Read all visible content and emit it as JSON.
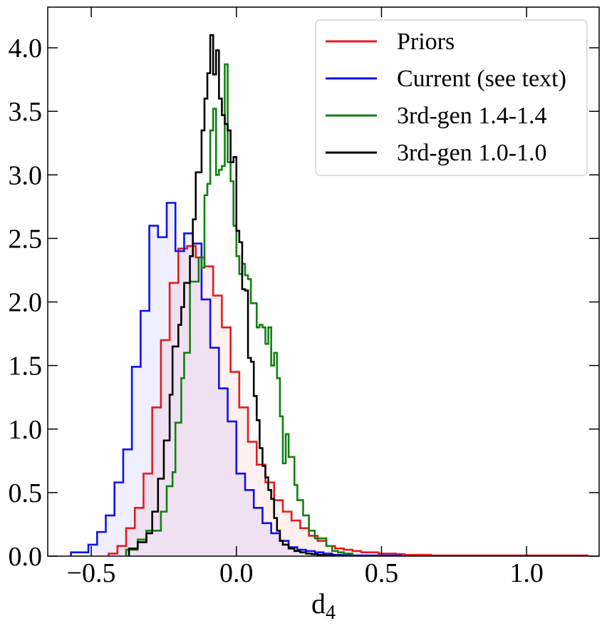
{
  "chart_data": {
    "type": "histogram",
    "xlabel": "d",
    "xlabel_sub": "4",
    "ylabel": "",
    "xlim": [
      -0.65,
      1.25
    ],
    "ylim": [
      0.0,
      4.32
    ],
    "xticks": [
      -0.5,
      0.0,
      0.5,
      1.0
    ],
    "xtick_labels": [
      "−0.5",
      "0.0",
      "0.5",
      "1.0"
    ],
    "yticks": [
      0.0,
      0.5,
      1.0,
      1.5,
      2.0,
      2.5,
      3.0,
      3.5,
      4.0
    ],
    "ytick_labels": [
      "0.0",
      "0.5",
      "1.0",
      "1.5",
      "2.0",
      "2.5",
      "3.0",
      "3.5",
      "4.0"
    ],
    "legend_position": "upper right",
    "series": [
      {
        "name": "Priors",
        "color": "#e41a1c",
        "fill": "rgba(255,120,120,0.12)",
        "edges": [
          -0.44,
          -0.41,
          -0.38,
          -0.35,
          -0.32,
          -0.29,
          -0.26,
          -0.23,
          -0.2,
          -0.17,
          -0.14,
          -0.11,
          -0.08,
          -0.05,
          -0.02,
          0.01,
          0.04,
          0.07,
          0.1,
          0.13,
          0.16,
          0.19,
          0.22,
          0.25,
          0.28,
          0.31,
          0.34,
          0.37,
          0.4,
          0.43,
          0.46,
          0.49,
          0.52,
          0.55,
          0.58,
          0.61,
          0.64,
          0.67,
          0.7,
          0.73,
          0.76,
          0.79,
          0.82,
          0.85,
          0.88,
          0.91,
          1.21
        ],
        "values": [
          0.02,
          0.08,
          0.22,
          0.38,
          0.65,
          1.17,
          1.7,
          2.15,
          2.42,
          2.44,
          2.35,
          2.28,
          2.05,
          1.8,
          1.45,
          1.17,
          0.9,
          0.72,
          0.58,
          0.44,
          0.35,
          0.28,
          0.22,
          0.16,
          0.12,
          0.08,
          0.06,
          0.05,
          0.04,
          0.03,
          0.03,
          0.02,
          0.02,
          0.015,
          0.01,
          0.01,
          0.01,
          0.005,
          0.005,
          0.005,
          0.005,
          0.005,
          0.005,
          0.005,
          0.005,
          0.005
        ]
      },
      {
        "name": "Current (see text)",
        "color": "#1010ee",
        "fill": "rgba(120,120,255,0.12)",
        "edges": [
          -0.57,
          -0.54,
          -0.51,
          -0.48,
          -0.45,
          -0.42,
          -0.39,
          -0.36,
          -0.33,
          -0.3,
          -0.27,
          -0.24,
          -0.21,
          -0.18,
          -0.15,
          -0.12,
          -0.09,
          -0.06,
          -0.03,
          0.0,
          0.03,
          0.06,
          0.09,
          0.12,
          0.15,
          0.18,
          0.21,
          0.24,
          0.27,
          0.3,
          0.33,
          0.36,
          0.39,
          0.42,
          0.45,
          0.48,
          0.51,
          0.54,
          0.57
        ],
        "values": [
          0.03,
          0.03,
          0.09,
          0.19,
          0.32,
          0.58,
          0.84,
          1.49,
          1.93,
          2.6,
          2.51,
          2.78,
          2.4,
          2.54,
          2.46,
          2.02,
          1.64,
          1.32,
          1.06,
          0.65,
          0.52,
          0.38,
          0.26,
          0.18,
          0.12,
          0.07,
          0.05,
          0.04,
          0.03,
          0.02,
          0.01,
          0.01,
          0.005,
          0.005,
          0.005,
          0.005,
          0.005,
          0.005
        ]
      },
      {
        "name": "3rd-gen 1.4-1.4",
        "color": "#108010",
        "fill": "none",
        "edges": [
          -0.38,
          -0.34,
          -0.31,
          -0.28,
          -0.26,
          -0.24,
          -0.22,
          -0.21,
          -0.19,
          -0.18,
          -0.16,
          -0.14,
          -0.13,
          -0.12,
          -0.11,
          -0.1,
          -0.09,
          -0.08,
          -0.07,
          -0.06,
          -0.05,
          -0.04,
          -0.03,
          -0.02,
          -0.01,
          0.0,
          0.01,
          0.02,
          0.03,
          0.04,
          0.05,
          0.06,
          0.07,
          0.08,
          0.09,
          0.1,
          0.11,
          0.12,
          0.13,
          0.14,
          0.15,
          0.16,
          0.17,
          0.18,
          0.2,
          0.21,
          0.23,
          0.25,
          0.27,
          0.29,
          0.31,
          0.33,
          0.35,
          0.37,
          0.4
        ],
        "values": [
          0.05,
          0.13,
          0.2,
          0.2,
          0.35,
          0.55,
          0.66,
          1.05,
          1.4,
          1.6,
          2.16,
          2.16,
          2.35,
          2.27,
          2.84,
          2.93,
          3.35,
          3.52,
          3.0,
          3.04,
          3.07,
          3.87,
          3.1,
          2.95,
          2.6,
          2.36,
          2.22,
          2.3,
          2.21,
          2.18,
          1.99,
          1.99,
          1.8,
          1.82,
          1.8,
          1.67,
          1.8,
          1.5,
          1.6,
          1.4,
          1.1,
          0.73,
          0.96,
          0.78,
          0.56,
          0.44,
          0.32,
          0.2,
          0.14,
          0.14,
          0.08,
          0.04,
          0.03,
          0.02
        ]
      },
      {
        "name": "3rd-gen 1.0-1.0",
        "color": "#000000",
        "fill": "none",
        "edges": [
          -0.37,
          -0.34,
          -0.31,
          -0.29,
          -0.27,
          -0.25,
          -0.23,
          -0.22,
          -0.2,
          -0.19,
          -0.18,
          -0.16,
          -0.15,
          -0.14,
          -0.12,
          -0.11,
          -0.1,
          -0.09,
          -0.08,
          -0.07,
          -0.06,
          -0.05,
          -0.04,
          -0.03,
          -0.02,
          -0.01,
          0.0,
          0.01,
          0.02,
          0.03,
          0.04,
          0.05,
          0.06,
          0.07,
          0.08,
          0.09,
          0.1,
          0.11,
          0.12,
          0.13,
          0.14,
          0.15,
          0.16,
          0.18,
          0.2,
          0.22,
          0.24,
          0.26,
          0.28,
          0.3,
          0.32,
          0.34,
          0.36
        ],
        "values": [
          0.06,
          0.11,
          0.18,
          0.35,
          0.61,
          0.91,
          1.27,
          1.65,
          1.82,
          1.96,
          2.15,
          2.36,
          2.65,
          3.02,
          3.35,
          3.6,
          3.8,
          4.1,
          3.79,
          3.98,
          3.6,
          3.47,
          3.4,
          3.35,
          3.1,
          3.14,
          2.56,
          2.47,
          2.1,
          2.09,
          1.56,
          1.53,
          1.26,
          1.07,
          0.85,
          0.71,
          0.62,
          0.52,
          0.45,
          0.3,
          0.2,
          0.12,
          0.09,
          0.06,
          0.04,
          0.03,
          0.02,
          0.015,
          0.01,
          0.005,
          0.005,
          0.005
        ]
      }
    ]
  }
}
